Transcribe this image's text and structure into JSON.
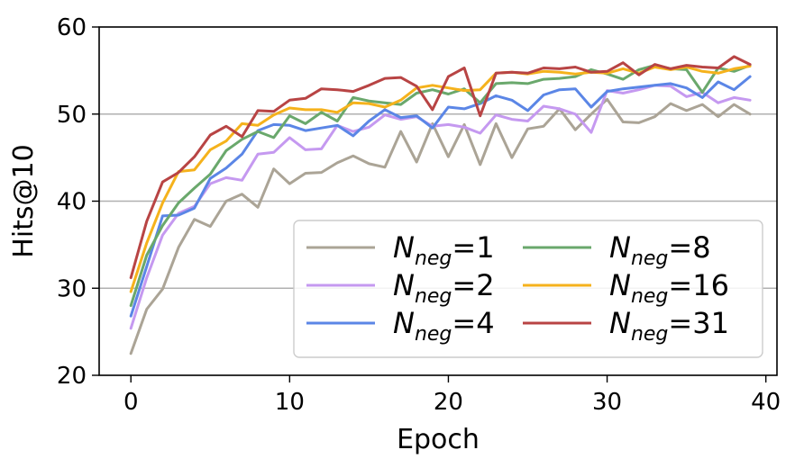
{
  "chart_data": {
    "type": "line",
    "xlabel": "Epoch",
    "ylabel": "Hits@10",
    "xlim": [
      -2,
      40.7
    ],
    "ylim": [
      20,
      60
    ],
    "xticks": [
      0,
      10,
      20,
      30,
      40
    ],
    "yticks": [
      20,
      30,
      40,
      50,
      60
    ],
    "grid": "horizontal",
    "legend_position": "lower-right",
    "legend_columns": 2,
    "x": [
      0,
      1,
      2,
      3,
      4,
      5,
      6,
      7,
      8,
      9,
      10,
      11,
      12,
      13,
      14,
      15,
      16,
      17,
      18,
      19,
      20,
      21,
      22,
      23,
      24,
      25,
      26,
      27,
      28,
      29,
      30,
      31,
      32,
      33,
      34,
      35,
      36,
      37,
      38,
      39
    ],
    "series": [
      {
        "name": "N",
        "sub": "neg",
        "suffix": "=1",
        "color": "#aba496",
        "values": [
          22.5,
          27.6,
          29.9,
          34.7,
          37.9,
          37.1,
          40.0,
          40.8,
          39.3,
          43.7,
          42.0,
          43.2,
          43.3,
          44.4,
          45.2,
          44.3,
          43.9,
          48.0,
          44.5,
          48.9,
          45.1,
          48.8,
          44.2,
          48.9,
          45.0,
          48.3,
          48.6,
          50.6,
          48.2,
          50.0,
          51.7,
          49.1,
          49.0,
          49.7,
          51.2,
          50.4,
          51.1,
          49.7,
          51.1,
          50.0
        ]
      },
      {
        "name": "N",
        "sub": "neg",
        "suffix": "=2",
        "color": "#c599f0",
        "values": [
          25.4,
          31.2,
          36.1,
          38.6,
          39.4,
          42.0,
          42.7,
          42.4,
          45.4,
          45.6,
          47.3,
          45.9,
          46.0,
          48.7,
          48.0,
          48.5,
          49.9,
          49.4,
          49.7,
          48.6,
          48.8,
          48.5,
          47.8,
          49.9,
          49.4,
          49.2,
          50.9,
          50.6,
          50.0,
          47.9,
          52.7,
          52.4,
          52.8,
          53.3,
          53.2,
          52.0,
          52.5,
          51.3,
          51.9,
          51.6
        ]
      },
      {
        "name": "N",
        "sub": "neg",
        "suffix": "=4",
        "color": "#5b86e6",
        "values": [
          26.8,
          32.5,
          38.3,
          38.4,
          39.2,
          42.6,
          43.8,
          45.4,
          48.1,
          48.8,
          48.7,
          48.1,
          48.4,
          48.7,
          47.5,
          49.2,
          50.5,
          49.6,
          49.8,
          48.4,
          50.8,
          50.6,
          51.2,
          52.1,
          51.6,
          50.4,
          52.2,
          52.8,
          52.9,
          50.8,
          52.6,
          52.9,
          53.1,
          53.3,
          53.5,
          53.0,
          51.9,
          53.7,
          52.8,
          54.3
        ]
      },
      {
        "name": "N",
        "sub": "neg",
        "suffix": "=8",
        "color": "#6aa86c",
        "values": [
          28.0,
          33.8,
          37.2,
          39.8,
          41.5,
          43.1,
          45.8,
          47.1,
          48.0,
          47.3,
          49.8,
          48.9,
          50.2,
          49.2,
          51.9,
          51.5,
          51.3,
          51.1,
          52.4,
          52.8,
          52.3,
          52.9,
          51.3,
          53.5,
          53.6,
          53.5,
          54.0,
          54.1,
          54.3,
          55.1,
          54.6,
          54.0,
          55.1,
          55.6,
          55.2,
          55.1,
          52.5,
          55.3,
          54.9,
          55.6
        ]
      },
      {
        "name": "N",
        "sub": "neg",
        "suffix": "=16",
        "color": "#f5b21c",
        "values": [
          29.6,
          35.2,
          39.8,
          43.4,
          43.6,
          45.9,
          46.9,
          48.9,
          48.7,
          49.9,
          50.7,
          50.5,
          50.5,
          50.2,
          51.3,
          51.2,
          50.8,
          51.6,
          53.0,
          53.3,
          53.0,
          52.7,
          52.8,
          54.7,
          54.8,
          54.6,
          54.9,
          54.8,
          54.6,
          54.8,
          54.7,
          55.2,
          54.7,
          55.4,
          55.1,
          55.4,
          54.9,
          54.7,
          55.2,
          55.5
        ]
      },
      {
        "name": "N",
        "sub": "neg",
        "suffix": "=31",
        "color": "#b84444",
        "values": [
          31.2,
          37.7,
          42.2,
          43.3,
          45.1,
          47.6,
          48.6,
          47.4,
          50.4,
          50.3,
          51.6,
          51.8,
          52.9,
          52.8,
          52.6,
          53.3,
          54.1,
          54.2,
          53.2,
          50.5,
          54.3,
          55.3,
          49.8,
          54.7,
          54.8,
          54.7,
          55.3,
          55.2,
          55.4,
          54.8,
          54.9,
          55.9,
          54.5,
          55.7,
          55.2,
          55.6,
          55.4,
          55.3,
          56.6,
          55.7
        ]
      }
    ]
  }
}
